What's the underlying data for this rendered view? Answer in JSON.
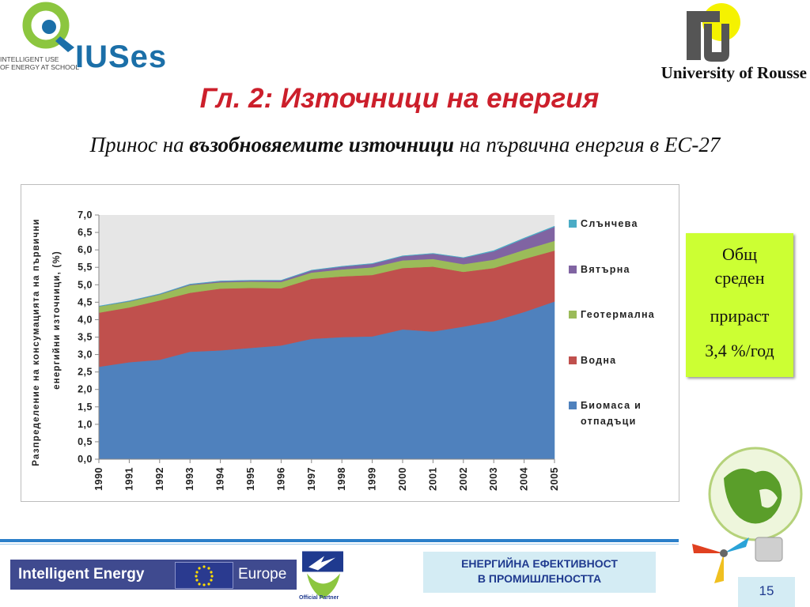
{
  "header": {
    "iuses_tagline_line1": "INTELLIGENT USE",
    "iuses_tagline_line2": "OF ENERGY AT SCHOOL",
    "iuses_word": "IUSes",
    "university": "University of Rousse"
  },
  "title": "Гл. 2: Източници на енергия",
  "subtitle": {
    "prefix": "Принос на ",
    "bold": "възобновяемите източници",
    "suffix": " на първична енергия в ЕС-27"
  },
  "growth": {
    "line1": "Общ",
    "line2": "среден",
    "line3": "прираст",
    "line4": "3,4 %/год"
  },
  "footer": {
    "ie_left": "Intelligent Energy",
    "ie_right": "Europe",
    "partner": "Official Partner",
    "ee_line1": "ЕНЕРГИЙНА ЕФЕКТИВНОСТ",
    "ee_line2": "В ПРОМИШЛЕНОСТТА",
    "page_number": "15"
  },
  "colors": {
    "biomass": "#4f81bd",
    "hydro": "#c0504d",
    "geothermal": "#9bbb59",
    "wind": "#8064a2",
    "solar": "#4bacc6",
    "plot_bg": "#e6e6e6",
    "title": "#cc1f2b",
    "growth_box": "#ccff33"
  },
  "chart_data": {
    "type": "area",
    "stacked": true,
    "title": "",
    "xlabel": "",
    "ylabel": "Разпределение на консумацията на първични енергийни източници, (%)",
    "ylabel_line1": "Разпределение на консумацията на първични",
    "ylabel_line2": "енергийни източници, (%)",
    "ylim": [
      0,
      7
    ],
    "y_ticks": [
      "0,0",
      "0,5",
      "1,0",
      "1,5",
      "2,0",
      "2,5",
      "3,0",
      "3,5",
      "4,0",
      "4,5",
      "5,0",
      "5,5",
      "6,0",
      "6,5",
      "7,0"
    ],
    "legend_position": "right",
    "x": [
      "1990",
      "1991",
      "1992",
      "1993",
      "1994",
      "1995",
      "1996",
      "1997",
      "1998",
      "1999",
      "2000",
      "2001",
      "2002",
      "2003",
      "2004",
      "2005"
    ],
    "series": [
      {
        "name": "Биомаса и отпадъци",
        "color": "#4f81bd",
        "values": [
          2.65,
          2.78,
          2.85,
          3.08,
          3.12,
          3.19,
          3.26,
          3.45,
          3.5,
          3.52,
          3.72,
          3.66,
          3.8,
          3.96,
          4.22,
          4.52
        ]
      },
      {
        "name": "Водна",
        "color": "#c0504d",
        "values": [
          1.55,
          1.57,
          1.7,
          1.69,
          1.77,
          1.72,
          1.64,
          1.72,
          1.74,
          1.76,
          1.76,
          1.86,
          1.57,
          1.52,
          1.52,
          1.46
        ]
      },
      {
        "name": "Геотермална",
        "color": "#9bbb59",
        "values": [
          0.18,
          0.17,
          0.17,
          0.22,
          0.18,
          0.18,
          0.18,
          0.18,
          0.2,
          0.22,
          0.22,
          0.22,
          0.22,
          0.24,
          0.26,
          0.28
        ]
      },
      {
        "name": "Вятърна",
        "color": "#8064a2",
        "values": [
          0.0,
          0.01,
          0.01,
          0.02,
          0.03,
          0.03,
          0.04,
          0.06,
          0.08,
          0.1,
          0.12,
          0.15,
          0.18,
          0.24,
          0.32,
          0.4
        ]
      },
      {
        "name": "Слънчева",
        "color": "#4bacc6",
        "values": [
          0.01,
          0.01,
          0.01,
          0.01,
          0.01,
          0.01,
          0.01,
          0.01,
          0.01,
          0.01,
          0.01,
          0.01,
          0.01,
          0.02,
          0.02,
          0.02
        ]
      }
    ],
    "legend_order": [
      "Слънчева",
      "Вятърна",
      "Геотермална",
      "Водна",
      "Биомаса и отпадъци"
    ],
    "legend_labels": {
      "solar": "Слънчева",
      "wind": "Вятърна",
      "geothermal": "Геотермална",
      "hydro": "Водна",
      "biomass_line1": "Биомаса и",
      "biomass_line2": "отпадъци"
    }
  }
}
